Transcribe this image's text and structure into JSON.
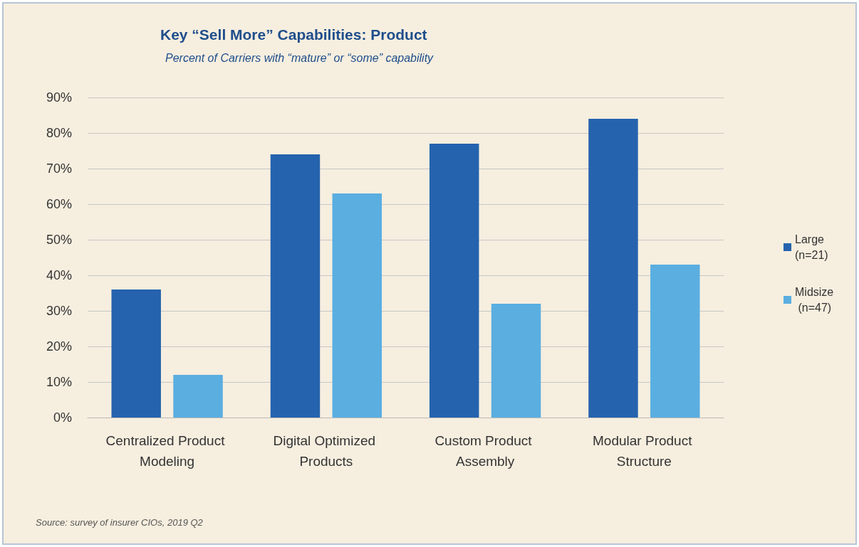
{
  "chart_data": {
    "type": "bar",
    "title": "Key “Sell More” Capabilities: Product",
    "subtitle": "Percent of Carriers with “mature” or “some” capability",
    "categories": [
      "Centralized Product Modeling",
      "Digital Optimized Products",
      "Custom Product Assembly",
      "Modular Product Structure"
    ],
    "series": [
      {
        "name": "Large (n=21)",
        "color": "#2563ae",
        "values": [
          36,
          74,
          77,
          84
        ]
      },
      {
        "name": "Midsize (n=47)",
        "color": "#5aaee0",
        "values": [
          12,
          63,
          32,
          43
        ]
      }
    ],
    "ylim": [
      0,
      90
    ],
    "yticks": [
      {
        "value": 0,
        "label": "0%"
      },
      {
        "value": 10,
        "label": "10%"
      },
      {
        "value": 20,
        "label": "20%"
      },
      {
        "value": 30,
        "label": "30%"
      },
      {
        "value": 40,
        "label": "40%"
      },
      {
        "value": 50,
        "label": "50%"
      },
      {
        "value": 60,
        "label": "60%"
      },
      {
        "value": 70,
        "label": "70%"
      },
      {
        "value": 80,
        "label": "80%"
      },
      {
        "value": 90,
        "label": "90%"
      }
    ],
    "grid": "y",
    "legend": "right",
    "annotations": [
      "Source: survey of insurer CIOs, 2019 Q2"
    ]
  }
}
